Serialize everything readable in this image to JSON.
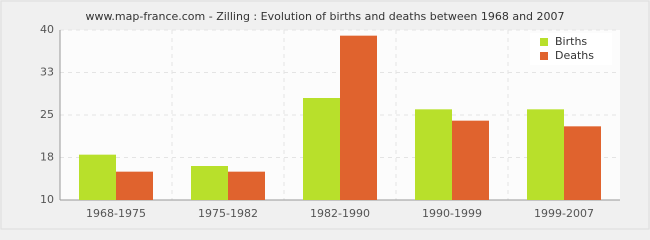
{
  "chart_data": {
    "type": "bar",
    "title": "www.map-france.com - Zilling : Evolution of births and deaths between 1968 and 2007",
    "categories": [
      "1968-1975",
      "1975-1982",
      "1982-1990",
      "1990-1999",
      "1999-2007"
    ],
    "series": [
      {
        "name": "Births",
        "color": "#b8e02b",
        "values": [
          18,
          16,
          28,
          26,
          26
        ]
      },
      {
        "name": "Deaths",
        "color": "#e0632e",
        "values": [
          15,
          15,
          39,
          24,
          23
        ]
      }
    ],
    "ylim": [
      10,
      40
    ],
    "yticks": [
      10,
      {
        "value": 17.5,
        "label": "18"
      },
      25,
      {
        "value": 32.5,
        "label": "33"
      },
      40
    ],
    "grid": true,
    "legend": "top-right"
  }
}
